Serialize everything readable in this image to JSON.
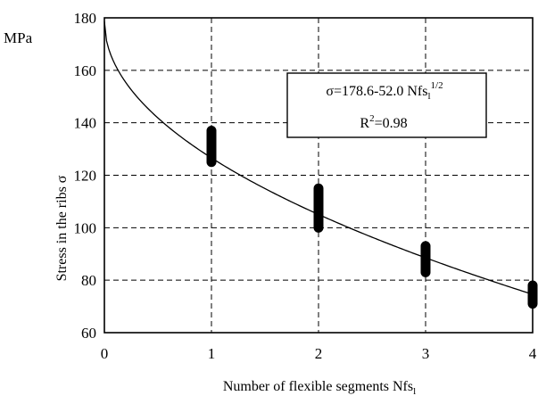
{
  "chart_data": {
    "type": "scatter",
    "title": "",
    "xlabel": "Number of flexible segments Nfs",
    "xlabel_sub": "l",
    "ylabel": "Stress in the ribs σ",
    "y_unit": "MPa",
    "xlim": [
      0,
      4
    ],
    "ylim": [
      60,
      180
    ],
    "x_ticks": [
      "0",
      "1",
      "2",
      "3",
      "4"
    ],
    "y_ticks": [
      "60",
      "80",
      "100",
      "120",
      "140",
      "160",
      "180"
    ],
    "grid": true,
    "grid_style": "dashed",
    "points": [
      {
        "x": 1,
        "y_min": 125,
        "y_max": 137
      },
      {
        "x": 2,
        "y_min": 100,
        "y_max": 115
      },
      {
        "x": 3,
        "y_min": 83,
        "y_max": 93
      },
      {
        "x": 4,
        "y_min": 71,
        "y_max": 78
      }
    ],
    "fit": {
      "formula": "y = a - b*sqrt(x)",
      "a": 178.6,
      "b": 52.0,
      "equation_main": "σ=178.6-52.0 Nfs",
      "equation_sub": "l",
      "equation_sup": "1/2",
      "r2_prefix": "R",
      "r2_sup": "2",
      "r2_suffix": "=0.98"
    },
    "colors": {
      "marks": "#000000",
      "grid": "#000000",
      "background": "#ffffff"
    }
  }
}
